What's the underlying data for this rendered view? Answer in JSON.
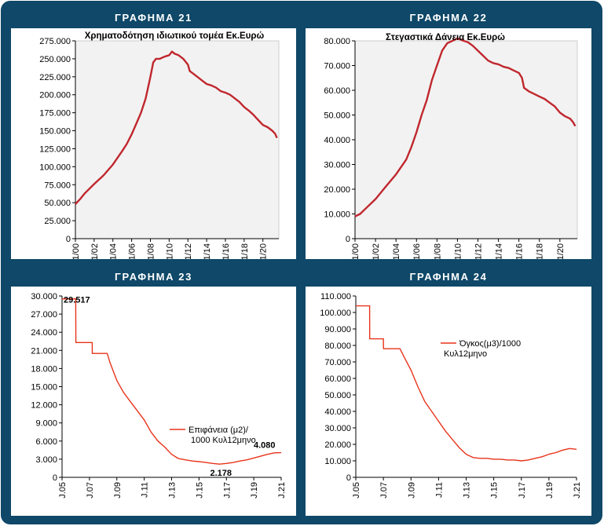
{
  "panels": [
    {
      "title": "ΓΡΑΦΗΜΑ 21"
    },
    {
      "title": "ΓΡΑΦΗΜΑ 22"
    },
    {
      "title": "ΓΡΑΦΗΜΑ 23"
    },
    {
      "title": "ΓΡΑΦΗΜΑ 24"
    }
  ],
  "chart_data": [
    {
      "type": "line",
      "title": "Χρηματοδότηση ιδιωτικού τομέα Εκ.Ευρώ",
      "line_color": "#c0272d",
      "plot_bg": "#f2f2f2",
      "ylim": [
        0,
        275000
      ],
      "yticks": [
        "0",
        "25.000",
        "50.000",
        "75.000",
        "100.000",
        "125.000",
        "150.000",
        "175.000",
        "200.000",
        "225.000",
        "250.000",
        "275.000"
      ],
      "xticks": [
        "1/00",
        "1/02",
        "1/04",
        "1/06",
        "1/08",
        "1/10",
        "1/12",
        "1/14",
        "1/16",
        "1/18",
        "1/20"
      ],
      "xlim": [
        2000,
        2021.7
      ],
      "grid": false,
      "series": [
        {
          "x": [
            2000,
            2000.5,
            2001,
            2002,
            2003,
            2004,
            2005,
            2005.5,
            2006,
            2006.5,
            2007,
            2007.5,
            2008,
            2008.3,
            2008.6,
            2009,
            2009.5,
            2010,
            2010.3,
            2010.6,
            2011,
            2011.5,
            2012,
            2012.2,
            2012.5,
            2013,
            2013.5,
            2014,
            2014.5,
            2015,
            2015.5,
            2016,
            2016.5,
            2017,
            2017.5,
            2018,
            2018.5,
            2019,
            2019.5,
            2020,
            2020.5,
            2021,
            2021.3,
            2021.5
          ],
          "y": [
            48000,
            55000,
            63000,
            76000,
            88000,
            103000,
            122000,
            132000,
            145000,
            160000,
            175000,
            195000,
            225000,
            245000,
            250000,
            250000,
            253000,
            255000,
            260000,
            257000,
            255000,
            250000,
            242000,
            233000,
            230000,
            225000,
            220000,
            215000,
            213000,
            210000,
            205000,
            203000,
            200000,
            195000,
            190000,
            183000,
            178000,
            172000,
            165000,
            158000,
            155000,
            150000,
            146000,
            140000
          ]
        }
      ]
    },
    {
      "type": "line",
      "title": "Στεγαστικά Δάνεια Εκ.Ευρώ",
      "line_color": "#c0272d",
      "plot_bg": "#f2f2f2",
      "ylim": [
        0,
        80000
      ],
      "yticks": [
        "0",
        "10.000",
        "20.000",
        "30.000",
        "40.000",
        "50.000",
        "60.000",
        "70.000",
        "80.000"
      ],
      "xticks": [
        "1/00",
        "1/02",
        "1/04",
        "1/06",
        "1/08",
        "1/10",
        "1/12",
        "1/14",
        "1/16",
        "1/18",
        "1/20"
      ],
      "xlim": [
        2000,
        2021.7
      ],
      "grid": false,
      "series": [
        {
          "x": [
            2000,
            2000.5,
            2001,
            2002,
            2003,
            2004,
            2005,
            2005.5,
            2006,
            2006.5,
            2007,
            2007.5,
            2008,
            2008.5,
            2009,
            2009.5,
            2010,
            2010.3,
            2010.6,
            2011,
            2011.5,
            2012,
            2012.5,
            2013,
            2013.5,
            2014,
            2014.5,
            2015,
            2015.5,
            2016,
            2016.3,
            2016.5,
            2017,
            2017.5,
            2018,
            2018.5,
            2019,
            2019.5,
            2020,
            2020.5,
            2021,
            2021.3,
            2021.5
          ],
          "y": [
            9000,
            10000,
            12000,
            16000,
            21000,
            26000,
            32000,
            37000,
            43000,
            50000,
            56000,
            64000,
            70000,
            76000,
            79000,
            80000,
            81000,
            80500,
            80000,
            79500,
            78000,
            76000,
            74000,
            72000,
            71000,
            70500,
            69500,
            69000,
            68000,
            67000,
            65000,
            61000,
            59500,
            58500,
            57500,
            56500,
            55000,
            53500,
            51000,
            49500,
            48500,
            47000,
            45500
          ]
        }
      ]
    },
    {
      "type": "line",
      "title": "",
      "legend": "Επιφάνεια (μ2)/ 1000 Κυλ12μηνο",
      "legend_position": "center-right",
      "line_color": "#e8331a",
      "plot_bg": "#ffffff",
      "ylim": [
        0,
        30000
      ],
      "yticks": [
        "0",
        "3.000",
        "6.000",
        "9.000",
        "12.000",
        "15.000",
        "18.000",
        "21.000",
        "24.000",
        "27.000",
        "30.000"
      ],
      "xticks": [
        "J.05",
        "J.07",
        "J.09",
        "J.11",
        "J.13",
        "J.15",
        "J.17",
        "J.19",
        "J.21"
      ],
      "xlim": [
        2005,
        2021
      ],
      "grid": false,
      "annotations": [
        {
          "text": "29.517",
          "x": 2005.0,
          "y": 29517
        },
        {
          "text": "2.178",
          "x": 2016.6,
          "y": 2178
        },
        {
          "text": "4.080",
          "x": 2020.8,
          "y": 4080
        }
      ],
      "series": [
        {
          "x": [
            2005,
            2006,
            2006.01,
            2007.2,
            2007.21,
            2008.3,
            2008.5,
            2009,
            2009.5,
            2010,
            2010.5,
            2011,
            2011.5,
            2012,
            2012.5,
            2013,
            2013.5,
            2014,
            2014.5,
            2015,
            2015.5,
            2016,
            2016.5,
            2017,
            2017.5,
            2018,
            2018.5,
            2019,
            2019.5,
            2020,
            2020.5,
            2021
          ],
          "y": [
            29517,
            29517,
            22300,
            22300,
            20500,
            20500,
            19000,
            16000,
            14000,
            12500,
            11000,
            9500,
            7500,
            6000,
            5000,
            3800,
            3100,
            2900,
            2700,
            2600,
            2450,
            2300,
            2178,
            2300,
            2450,
            2700,
            2900,
            3200,
            3500,
            3800,
            4050,
            4080
          ]
        }
      ]
    },
    {
      "type": "line",
      "title": "",
      "legend": "Όγκος(μ3)/1000 Κυλ12μηνο",
      "legend_position": "upper-center",
      "line_color": "#e8331a",
      "plot_bg": "#ffffff",
      "ylim": [
        0,
        110000
      ],
      "yticks": [
        "0",
        "10.000",
        "20.000",
        "30.000",
        "40.000",
        "50.000",
        "60.000",
        "70.000",
        "80.000",
        "90.000",
        "100.000",
        "110.000"
      ],
      "xticks": [
        "J.05",
        "J.07",
        "J.09",
        "J.11",
        "J.13",
        "J.15",
        "J.17",
        "J.19",
        "J.21"
      ],
      "xlim": [
        2005,
        2021
      ],
      "grid": false,
      "series": [
        {
          "x": [
            2005,
            2006,
            2006.01,
            2007,
            2007.01,
            2008.2,
            2008.5,
            2009,
            2009.5,
            2010,
            2010.5,
            2011,
            2011.5,
            2012,
            2012.5,
            2013,
            2013.5,
            2014,
            2014.5,
            2015,
            2015.5,
            2016,
            2016.5,
            2017,
            2017.5,
            2018,
            2018.5,
            2019,
            2019.5,
            2020,
            2020.5,
            2021
          ],
          "y": [
            104000,
            104000,
            84000,
            84000,
            78000,
            78000,
            73000,
            65000,
            55000,
            46000,
            40000,
            34000,
            28000,
            23000,
            18000,
            14000,
            12000,
            11500,
            11500,
            11000,
            11000,
            10500,
            10500,
            10000,
            10500,
            11500,
            12500,
            14000,
            15000,
            16500,
            17500,
            17000
          ]
        }
      ]
    }
  ]
}
